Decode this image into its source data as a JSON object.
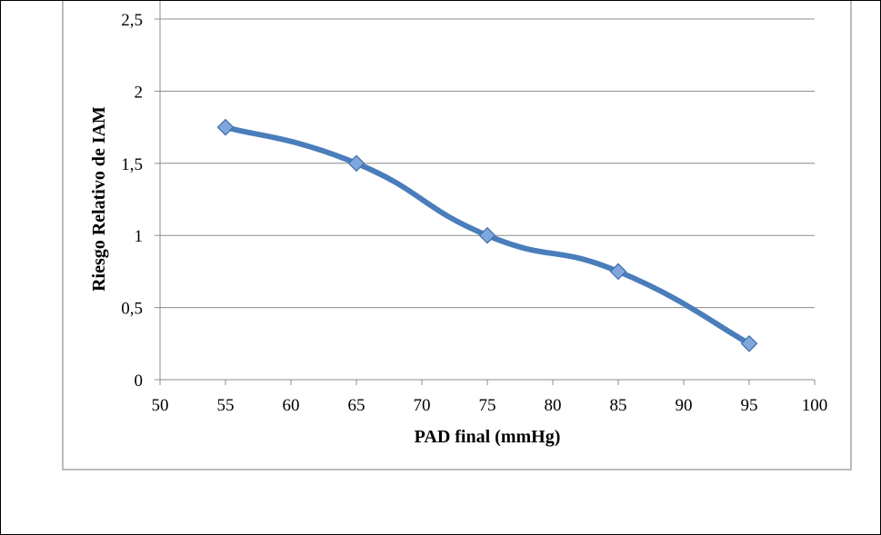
{
  "chart_data": {
    "type": "line",
    "title": "",
    "xlabel": "PAD final (mmHg)",
    "ylabel": "Riesgo Relativo de IAM",
    "xlim": [
      50,
      100
    ],
    "ylim": [
      0,
      2.5
    ],
    "x_ticks": [
      "50",
      "55",
      "60",
      "65",
      "70",
      "75",
      "80",
      "85",
      "90",
      "95",
      "100"
    ],
    "y_ticks": [
      "0",
      "0,5",
      "1",
      "1,5",
      "2",
      "2,5"
    ],
    "grid": "horizontal",
    "legend": "none",
    "smooth": true,
    "series": [
      {
        "x": [
          55,
          65,
          75,
          85,
          95
        ],
        "values": [
          1.75,
          1.5,
          1.0,
          0.75,
          0.25
        ],
        "color": "#4A7EBB",
        "marker": "diamond",
        "marker_color": "#7FA7DD"
      }
    ]
  }
}
